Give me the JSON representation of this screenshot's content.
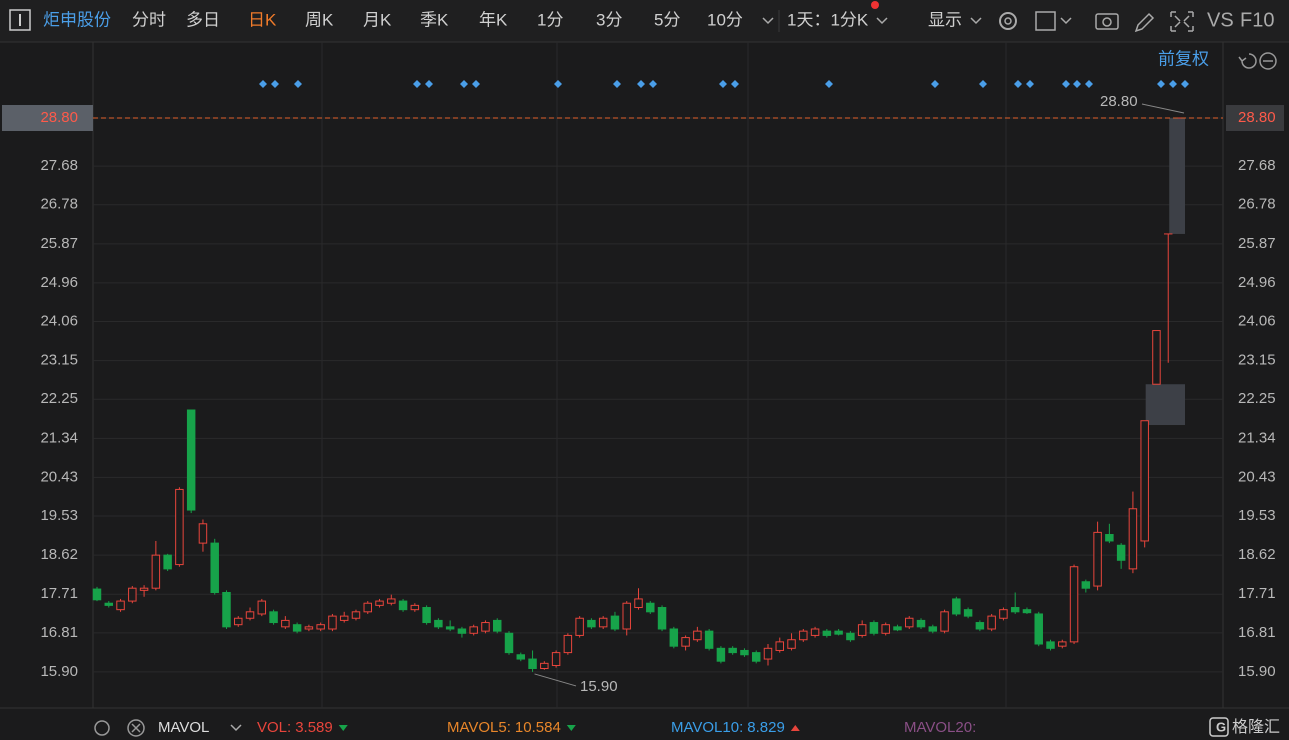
{
  "toolbar": {
    "stock": "炬申股份",
    "periods": [
      "分时",
      "多日",
      "日K",
      "周K",
      "月K",
      "季K",
      "年K",
      "1分",
      "3分",
      "5分",
      "10分"
    ],
    "active": "日K",
    "multi_period": "1天：1分K",
    "display": "显示",
    "vs": "VS",
    "f10": "F10",
    "adjust": "前复权"
  },
  "chart_data": {
    "type": "candlestick",
    "open": [
      17.83,
      17.5,
      17.35,
      17.55,
      17.8,
      17.85,
      18.62,
      18.4,
      22.0,
      18.9,
      18.9,
      17.75,
      17.0,
      17.15,
      17.25,
      17.3,
      16.95,
      17.0,
      16.9,
      16.9,
      16.9,
      17.1,
      17.15,
      17.3,
      17.45,
      17.5,
      17.55,
      17.35,
      17.4,
      17.1,
      16.95,
      16.9,
      16.8,
      16.85,
      17.1,
      16.8,
      16.3,
      16.2,
      15.98,
      16.05,
      16.35,
      16.75,
      17.1,
      16.95,
      17.2,
      16.9,
      17.4,
      17.5,
      17.4,
      16.9,
      16.5,
      16.65,
      16.85,
      16.45,
      16.45,
      16.4,
      16.35,
      16.2,
      16.4,
      16.45,
      16.65,
      16.75,
      16.85,
      16.85,
      16.8,
      16.75,
      17.05,
      16.8,
      16.95,
      16.95,
      17.1,
      16.95,
      16.85,
      17.6,
      17.35,
      17.05,
      16.9,
      17.15,
      17.4,
      17.35,
      17.25,
      16.6,
      16.5,
      16.6,
      18.0,
      17.9,
      19.1,
      18.85,
      18.3,
      18.95,
      22.6,
      26.1,
      28.8
    ],
    "high": [
      17.88,
      17.55,
      17.6,
      17.9,
      17.92,
      18.95,
      18.65,
      20.2,
      22.0,
      19.45,
      19.0,
      17.8,
      17.2,
      17.4,
      17.6,
      17.35,
      17.2,
      17.05,
      17.0,
      17.05,
      17.25,
      17.3,
      17.35,
      17.55,
      17.6,
      17.7,
      17.6,
      17.5,
      17.45,
      17.15,
      17.1,
      16.95,
      17.0,
      17.1,
      17.15,
      16.85,
      16.35,
      16.4,
      16.15,
      16.4,
      16.8,
      17.2,
      17.15,
      17.2,
      17.3,
      17.55,
      17.85,
      17.55,
      17.45,
      16.95,
      16.75,
      16.95,
      16.9,
      16.5,
      16.5,
      16.45,
      16.4,
      16.55,
      16.7,
      16.8,
      16.9,
      16.95,
      16.9,
      16.9,
      16.85,
      17.1,
      17.1,
      17.05,
      17.0,
      17.2,
      17.15,
      17.0,
      17.35,
      17.65,
      17.4,
      17.1,
      17.25,
      17.4,
      17.75,
      17.4,
      17.3,
      16.65,
      16.65,
      18.4,
      18.05,
      19.4,
      19.35,
      18.9,
      20.1,
      21.75,
      23.85,
      26.1,
      28.8
    ],
    "low": [
      17.55,
      17.4,
      17.3,
      17.5,
      17.65,
      17.8,
      18.25,
      18.35,
      19.6,
      18.7,
      17.7,
      16.9,
      16.95,
      17.1,
      17.2,
      17.0,
      16.9,
      16.8,
      16.85,
      16.85,
      16.85,
      17.05,
      17.1,
      17.25,
      17.4,
      17.45,
      17.3,
      17.3,
      17.0,
      16.9,
      16.85,
      16.7,
      16.75,
      16.8,
      16.8,
      16.3,
      16.15,
      15.9,
      15.95,
      16.0,
      16.3,
      16.7,
      16.9,
      16.9,
      16.85,
      16.75,
      17.35,
      17.25,
      16.85,
      16.45,
      16.4,
      16.6,
      16.4,
      16.1,
      16.3,
      16.25,
      16.1,
      16.05,
      16.35,
      16.4,
      16.6,
      16.7,
      16.7,
      16.75,
      16.6,
      16.7,
      16.75,
      16.75,
      16.85,
      16.9,
      16.9,
      16.8,
      16.8,
      17.2,
      17.15,
      16.85,
      16.85,
      17.1,
      17.25,
      17.25,
      16.5,
      16.4,
      16.45,
      16.55,
      17.75,
      17.8,
      18.9,
      18.3,
      18.2,
      18.8,
      22.6,
      23.1,
      28.8
    ],
    "close": [
      17.58,
      17.45,
      17.55,
      17.85,
      17.85,
      18.62,
      18.3,
      20.15,
      19.67,
      19.35,
      17.75,
      16.95,
      17.15,
      17.3,
      17.55,
      17.05,
      17.1,
      16.85,
      16.95,
      17.0,
      17.2,
      17.2,
      17.3,
      17.5,
      17.55,
      17.6,
      17.35,
      17.45,
      17.05,
      16.95,
      16.9,
      16.8,
      16.95,
      17.05,
      16.85,
      16.35,
      16.2,
      15.98,
      16.1,
      16.35,
      16.75,
      17.15,
      16.95,
      17.15,
      16.9,
      17.5,
      17.6,
      17.3,
      16.9,
      16.5,
      16.7,
      16.85,
      16.45,
      16.15,
      16.35,
      16.3,
      16.15,
      16.45,
      16.6,
      16.65,
      16.85,
      16.9,
      16.75,
      16.78,
      16.65,
      17.0,
      16.8,
      17.0,
      16.88,
      17.15,
      16.95,
      16.85,
      17.3,
      17.25,
      17.2,
      16.9,
      17.2,
      17.35,
      17.3,
      17.28,
      16.55,
      16.45,
      16.6,
      18.35,
      17.85,
      19.15,
      18.95,
      18.5,
      19.7,
      21.75,
      23.85,
      26.1,
      28.8
    ],
    "up_color": "#e8453c",
    "down_color": "#17a34a",
    "gap_color": "#3d4047",
    "gaps": [
      {
        "candle": 89,
        "low": 21.65,
        "high": 22.6
      },
      {
        "candle": 91,
        "low": 26.1,
        "high": 28.8
      }
    ],
    "ylim": [
      15.06,
      30.57
    ],
    "yticks": [
      {
        "value": 28.8,
        "label": "28.80"
      },
      27.68,
      26.78,
      25.87,
      24.96,
      24.06,
      23.15,
      22.25,
      21.34,
      20.43,
      19.53,
      18.62,
      17.71,
      16.81,
      {
        "value": 15.9,
        "label": "15.90"
      }
    ],
    "grid": true,
    "last_price": {
      "value": 28.8,
      "label": "28.80",
      "color": "#e0622c"
    },
    "high_annotation": {
      "value": 28.8,
      "label": "28.80"
    },
    "low_annotation": {
      "value": 15.9,
      "label": "15.90"
    },
    "indicator": "MAVOL",
    "indicators": [
      {
        "name": "VOL:",
        "value": 3.589,
        "color": "#e8453c",
        "trend": "down"
      },
      {
        "name": "MAVOL5:",
        "value": 10.584,
        "color": "#e8862a",
        "trend": "down"
      },
      {
        "name": "MAVOL10:",
        "value": 8.829,
        "color": "#3a9ee8",
        "trend": "up"
      },
      {
        "name": "MAVOL20:",
        "color": "#8a4f86"
      }
    ],
    "source": "格隆汇"
  }
}
